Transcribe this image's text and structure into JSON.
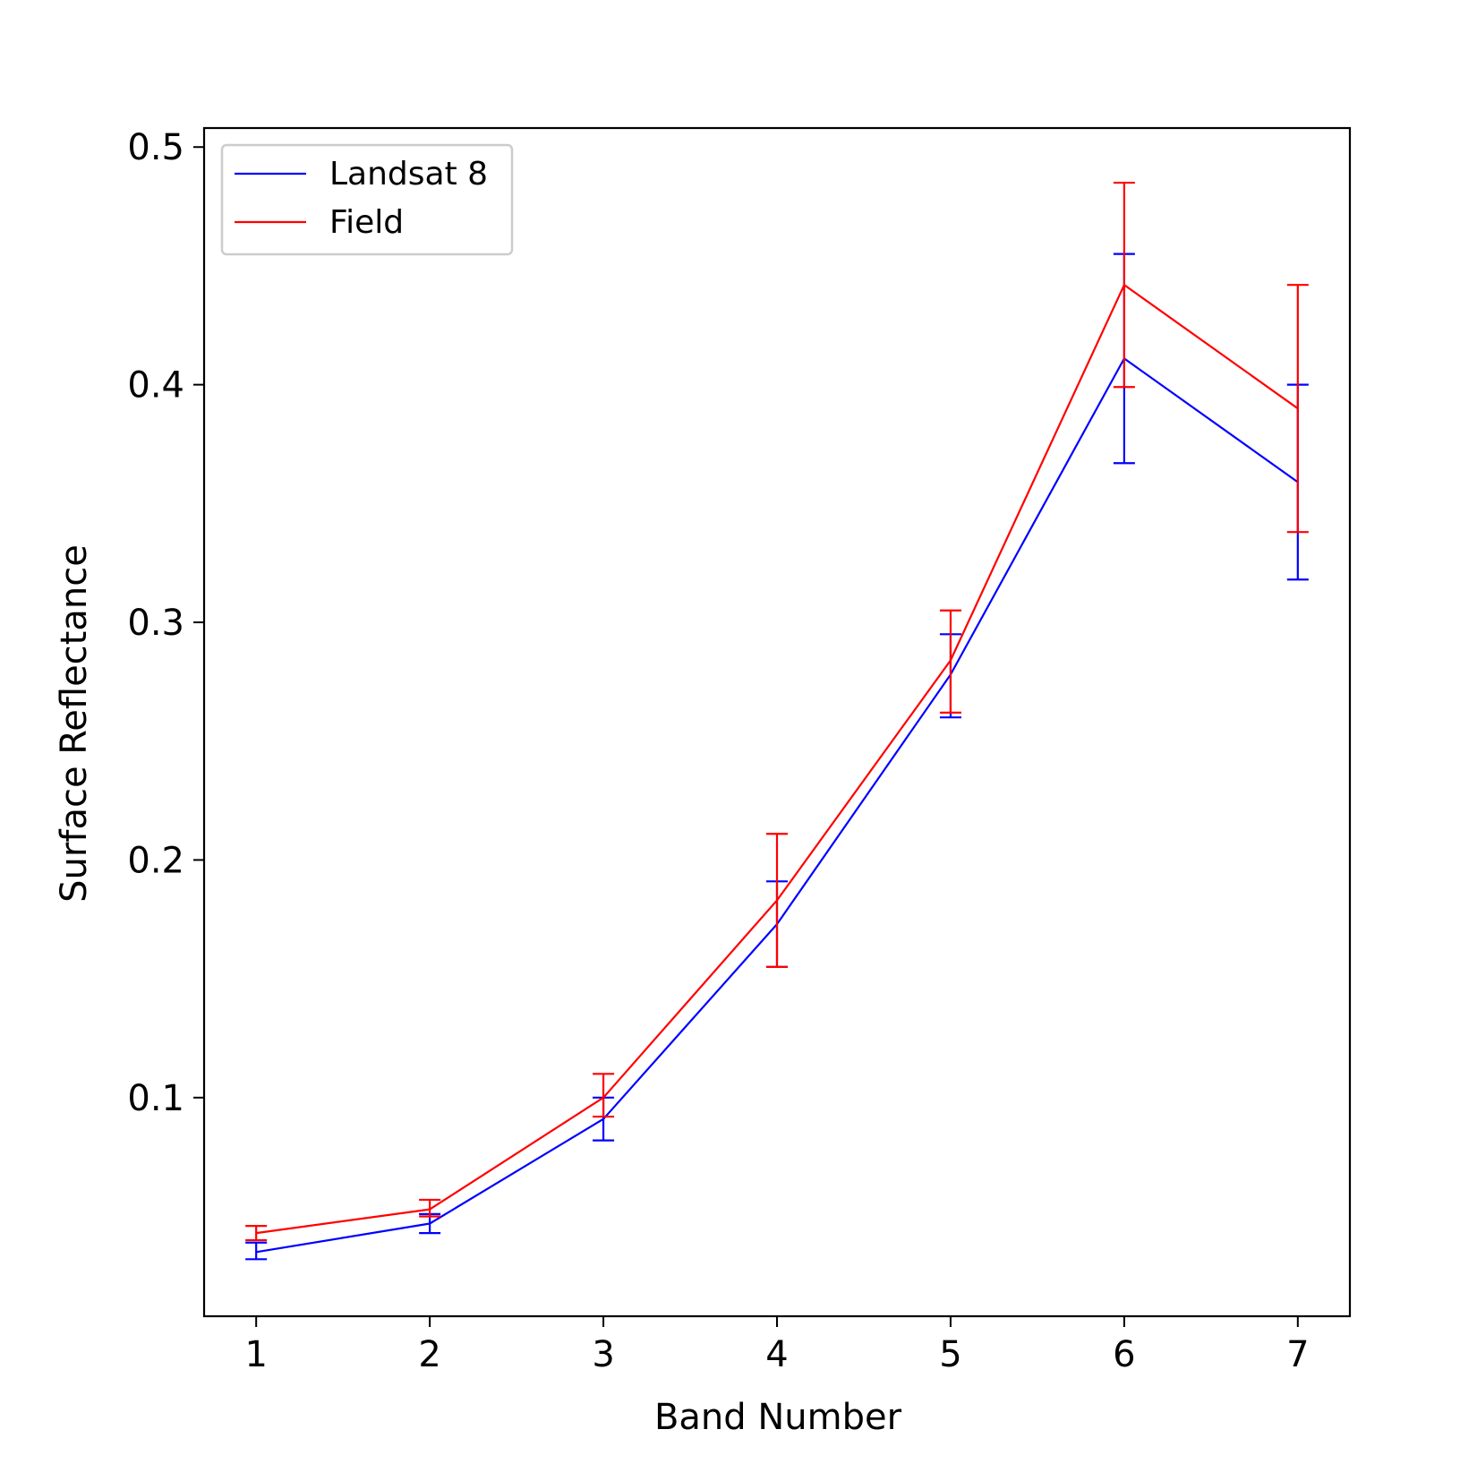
{
  "chart_data": {
    "type": "line",
    "title": "",
    "xlabel": "Band Number",
    "ylabel": "Surface Reflectance",
    "x": [
      1,
      2,
      3,
      4,
      5,
      6,
      7
    ],
    "x_ticks": [
      "1",
      "2",
      "3",
      "4",
      "5",
      "6",
      "7"
    ],
    "xlim": [
      0.7,
      7.3
    ],
    "y_ticks": [
      "0.1",
      "0.2",
      "0.3",
      "0.4",
      "0.5"
    ],
    "ylim": [
      0.008,
      0.508
    ],
    "grid": false,
    "legend_position": "top-left",
    "series": [
      {
        "name": "Landsat 8",
        "color": "#0000ff",
        "values": [
          0.035,
          0.047,
          0.091,
          0.173,
          0.278,
          0.411,
          0.359
        ],
        "error_low": [
          0.032,
          0.043,
          0.082,
          0.155,
          0.26,
          0.367,
          0.318
        ],
        "error_high": [
          0.039,
          0.051,
          0.1,
          0.191,
          0.295,
          0.455,
          0.4
        ]
      },
      {
        "name": "Field",
        "color": "#ff0000",
        "values": [
          0.043,
          0.053,
          0.1,
          0.183,
          0.284,
          0.442,
          0.39
        ],
        "error_low": [
          0.04,
          0.05,
          0.092,
          0.155,
          0.262,
          0.399,
          0.338
        ],
        "error_high": [
          0.046,
          0.057,
          0.11,
          0.211,
          0.305,
          0.485,
          0.442
        ]
      }
    ]
  }
}
